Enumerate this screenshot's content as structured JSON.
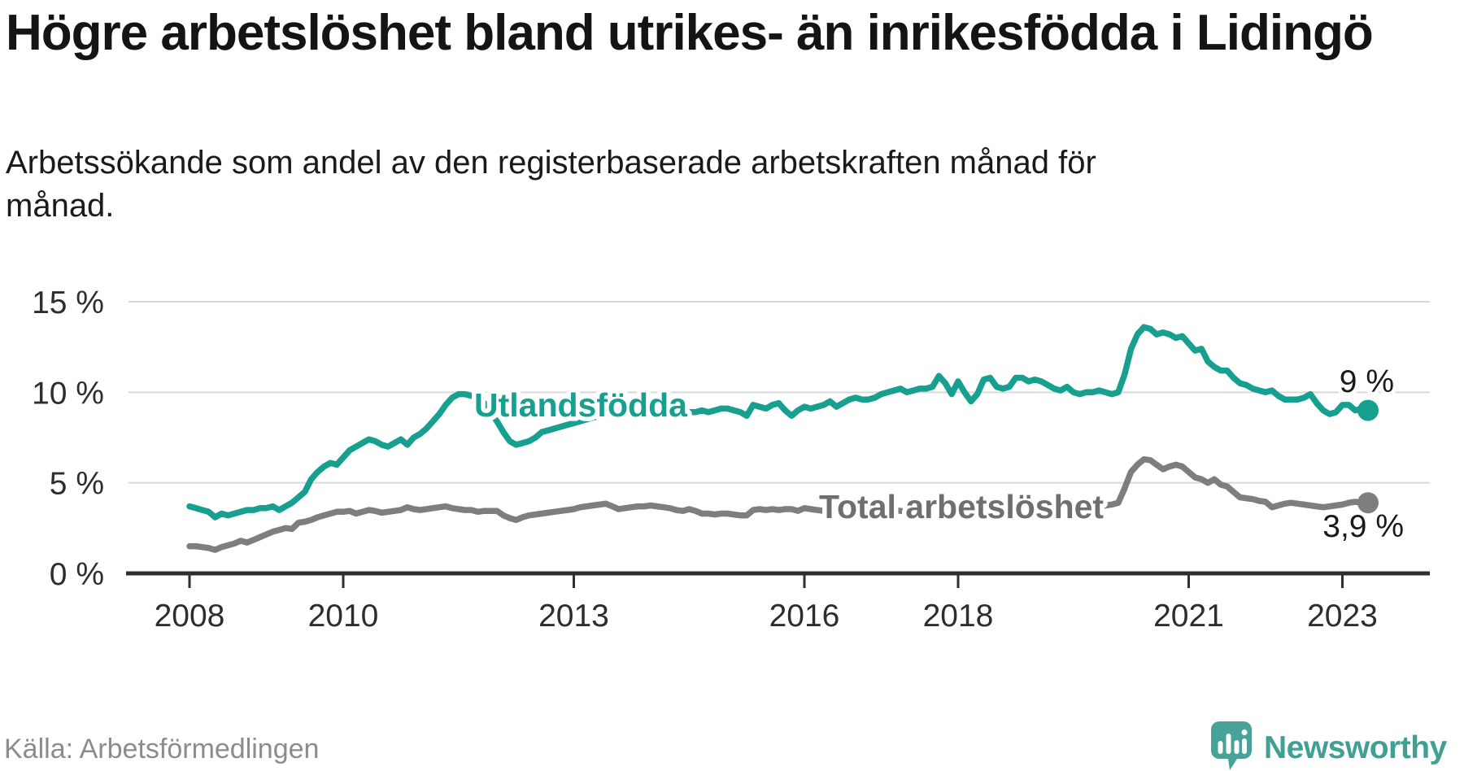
{
  "header": {
    "title": "Högre arbetslöshet bland utrikes- än inrikesfödda i Lidingö",
    "subtitle": "Arbetssökande som andel av den registerbaserade arbetskraften månad för månad."
  },
  "chart_data": {
    "type": "line",
    "unit": "%",
    "grid": true,
    "legend_position": "inline-labels",
    "ylim": [
      0,
      15
    ],
    "x_start": "2008-01",
    "x_end": "2023-05",
    "y_ticks": [
      {
        "value": 0,
        "label": "0 %"
      },
      {
        "value": 5,
        "label": "5 %"
      },
      {
        "value": 10,
        "label": "10 %"
      },
      {
        "value": 15,
        "label": "15 %"
      }
    ],
    "x_ticks": [
      {
        "year": 2008,
        "label": "2008"
      },
      {
        "year": 2010,
        "label": "2010"
      },
      {
        "year": 2013,
        "label": "2013"
      },
      {
        "year": 2016,
        "label": "2016"
      },
      {
        "year": 2018,
        "label": "2018"
      },
      {
        "year": 2021,
        "label": "2021"
      },
      {
        "year": 2023,
        "label": "2023"
      }
    ],
    "series": [
      {
        "name": "Utlandsfödda",
        "color": "#17a08f",
        "end_label": "9 %",
        "end_value": 9.0,
        "values": [
          3.7,
          3.6,
          3.5,
          3.4,
          3.1,
          3.3,
          3.2,
          3.3,
          3.4,
          3.5,
          3.5,
          3.6,
          3.6,
          3.7,
          3.5,
          3.7,
          3.9,
          4.2,
          4.5,
          5.2,
          5.6,
          5.9,
          6.1,
          6.0,
          6.4,
          6.8,
          7.0,
          7.2,
          7.4,
          7.3,
          7.1,
          7.0,
          7.2,
          7.4,
          7.1,
          7.5,
          7.7,
          8.0,
          8.4,
          8.8,
          9.3,
          9.7,
          9.9,
          9.9,
          9.8,
          9.7,
          9.4,
          8.9,
          8.4,
          7.8,
          7.3,
          7.1,
          7.2,
          7.3,
          7.5,
          7.8,
          7.9,
          8.0,
          8.1,
          8.2,
          8.3,
          8.4,
          8.5,
          8.6,
          8.7,
          8.7,
          8.8,
          8.8,
          8.9,
          8.8,
          8.9,
          8.9,
          8.9,
          9.0,
          9.0,
          9.0,
          9.0,
          9.0,
          8.9,
          8.9,
          9.0,
          8.9,
          9.0,
          9.1,
          9.1,
          9.0,
          8.9,
          8.7,
          9.3,
          9.2,
          9.1,
          9.3,
          9.4,
          9.0,
          8.7,
          9.0,
          9.2,
          9.1,
          9.2,
          9.3,
          9.5,
          9.2,
          9.4,
          9.6,
          9.7,
          9.6,
          9.6,
          9.7,
          9.9,
          10.0,
          10.1,
          10.2,
          10.0,
          10.1,
          10.2,
          10.2,
          10.3,
          10.9,
          10.5,
          9.9,
          10.6,
          10.0,
          9.5,
          9.9,
          10.7,
          10.8,
          10.3,
          10.2,
          10.3,
          10.8,
          10.8,
          10.6,
          10.7,
          10.6,
          10.4,
          10.2,
          10.1,
          10.3,
          10.0,
          9.9,
          10.0,
          10.0,
          10.1,
          10.0,
          9.9,
          10.0,
          11.0,
          12.4,
          13.2,
          13.6,
          13.5,
          13.2,
          13.3,
          13.2,
          13.0,
          13.1,
          12.7,
          12.3,
          12.4,
          11.7,
          11.4,
          11.2,
          11.2,
          10.8,
          10.5,
          10.4,
          10.2,
          10.1,
          10.0,
          10.1,
          9.8,
          9.6,
          9.6,
          9.6,
          9.7,
          9.9,
          9.4,
          9.0,
          8.8,
          8.9,
          9.3,
          9.3,
          9.0,
          9.1,
          9.0
        ]
      },
      {
        "name": "Total arbetslöshet",
        "color": "#7e7e7e",
        "end_label": "3,9 %",
        "end_value": 3.9,
        "values": [
          1.5,
          1.5,
          1.45,
          1.4,
          1.3,
          1.45,
          1.55,
          1.65,
          1.8,
          1.7,
          1.85,
          2.0,
          2.15,
          2.3,
          2.4,
          2.5,
          2.45,
          2.8,
          2.85,
          2.95,
          3.1,
          3.2,
          3.3,
          3.4,
          3.4,
          3.45,
          3.3,
          3.4,
          3.5,
          3.45,
          3.35,
          3.4,
          3.45,
          3.5,
          3.65,
          3.55,
          3.5,
          3.55,
          3.6,
          3.65,
          3.7,
          3.6,
          3.55,
          3.5,
          3.5,
          3.4,
          3.45,
          3.45,
          3.45,
          3.2,
          3.05,
          2.95,
          3.1,
          3.2,
          3.25,
          3.3,
          3.35,
          3.4,
          3.45,
          3.5,
          3.55,
          3.65,
          3.7,
          3.75,
          3.8,
          3.85,
          3.7,
          3.55,
          3.6,
          3.65,
          3.7,
          3.7,
          3.75,
          3.7,
          3.65,
          3.6,
          3.5,
          3.45,
          3.55,
          3.45,
          3.3,
          3.3,
          3.25,
          3.3,
          3.3,
          3.25,
          3.2,
          3.2,
          3.5,
          3.55,
          3.5,
          3.55,
          3.5,
          3.55,
          3.55,
          3.45,
          3.6,
          3.55,
          3.5,
          3.45,
          3.5,
          3.45,
          3.5,
          3.45,
          3.4,
          3.45,
          3.5,
          3.45,
          3.5,
          3.45,
          3.5,
          3.45,
          3.4,
          3.45,
          3.5,
          3.45,
          3.4,
          3.45,
          3.5,
          3.5,
          3.5,
          3.45,
          3.4,
          3.45,
          3.5,
          3.45,
          3.5,
          3.45,
          3.4,
          3.45,
          3.5,
          3.55,
          3.6,
          3.55,
          3.6,
          3.65,
          3.6,
          3.65,
          3.7,
          3.65,
          3.7,
          3.75,
          3.7,
          3.75,
          3.8,
          3.9,
          4.7,
          5.6,
          6.0,
          6.3,
          6.25,
          6.0,
          5.75,
          5.9,
          6.0,
          5.9,
          5.6,
          5.3,
          5.2,
          5.0,
          5.2,
          4.9,
          4.8,
          4.5,
          4.2,
          4.15,
          4.1,
          4.0,
          3.95,
          3.65,
          3.75,
          3.85,
          3.9,
          3.85,
          3.8,
          3.75,
          3.7,
          3.65,
          3.7,
          3.75,
          3.8,
          3.9,
          3.95,
          3.9,
          3.9
        ]
      }
    ]
  },
  "footer": {
    "source": "Källa: Arbetsförmedlingen",
    "brand": "Newsworthy",
    "logo_icon": "newsworthy-bubble-bar-chart-icon",
    "brand_color": "#3fa093",
    "icon_color": "#47a298"
  }
}
